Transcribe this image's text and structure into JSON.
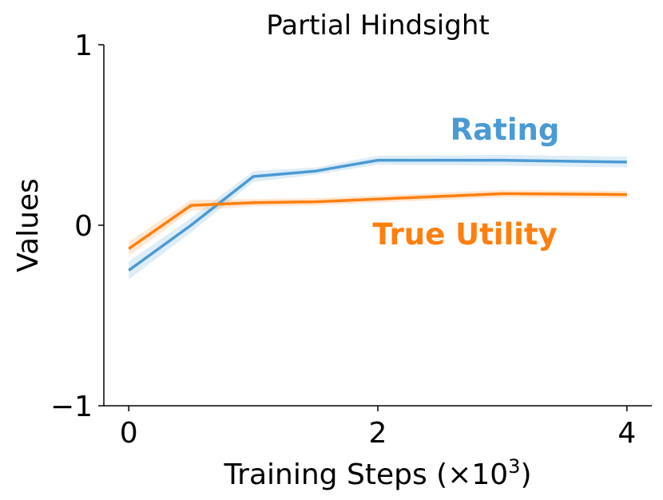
{
  "chart_data": {
    "type": "line",
    "title": "Partial Hindsight",
    "xlabel": "Training Steps (×10",
    "xlabel_sup": "3",
    "xlabel_close": ")",
    "ylabel": "Values",
    "xlim": [
      -0.2,
      4.2
    ],
    "ylim": [
      -1,
      1
    ],
    "xticks": [
      0,
      2,
      4
    ],
    "yticks": [
      -1,
      0,
      1
    ],
    "xtick_labels": [
      "0",
      "2",
      "4"
    ],
    "ytick_labels": [
      "−1",
      "0",
      "1"
    ],
    "grid": false,
    "legend": "inline labels",
    "x": [
      0,
      0.5,
      1,
      1.5,
      2,
      3,
      4
    ],
    "series": [
      {
        "name": "Rating",
        "color": "#4a9ad4",
        "values": [
          -0.25,
          0.0,
          0.27,
          0.3,
          0.36,
          0.36,
          0.35
        ],
        "band": [
          0.05,
          0.04,
          0.03,
          0.02,
          0.025,
          0.03,
          0.03
        ]
      },
      {
        "name": "True Utility",
        "color": "#ff7f0e",
        "values": [
          -0.13,
          0.11,
          0.125,
          0.13,
          0.145,
          0.175,
          0.17
        ],
        "band": [
          0.04,
          0.03,
          0.02,
          0.02,
          0.02,
          0.02,
          0.02
        ]
      }
    ]
  }
}
